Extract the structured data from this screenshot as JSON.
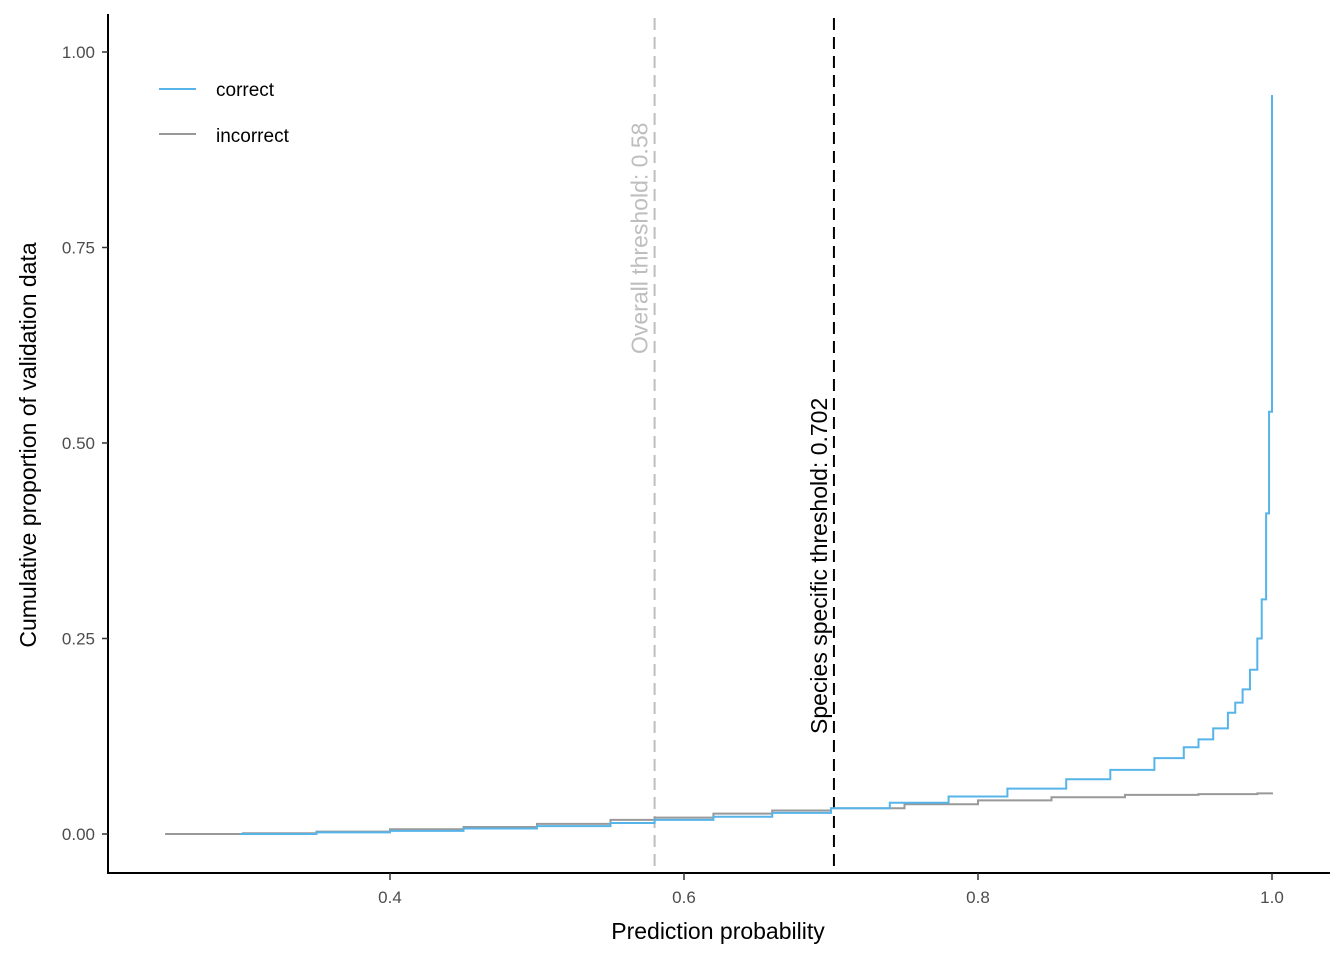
{
  "chart_data": {
    "type": "line",
    "subtype": "step (empirical cumulative)",
    "title": "",
    "xlabel": "Prediction probability",
    "ylabel": "Cumulative proportion of validation data",
    "xlim": [
      0.22,
      1.03
    ],
    "ylim": [
      -0.05,
      1.05
    ],
    "x_ticks": [
      0.4,
      0.6,
      0.8,
      1.0
    ],
    "x_tick_labels": [
      "0.4",
      "0.6",
      "0.8",
      "1.0"
    ],
    "y_ticks": [
      0.0,
      0.25,
      0.5,
      0.75,
      1.0
    ],
    "y_tick_labels": [
      "0.00",
      "0.25",
      "0.50",
      "0.75",
      "1.00"
    ],
    "grid": false,
    "legend": {
      "position": "top-left inside",
      "entries": [
        {
          "label": "correct",
          "color": "#56B4E9"
        },
        {
          "label": "incorrect",
          "color": "#999999"
        }
      ]
    },
    "series": [
      {
        "name": "correct",
        "color": "#56B4E9",
        "x": [
          0.298,
          0.35,
          0.4,
          0.45,
          0.5,
          0.55,
          0.58,
          0.62,
          0.66,
          0.7,
          0.74,
          0.78,
          0.82,
          0.86,
          0.89,
          0.92,
          0.94,
          0.95,
          0.96,
          0.97,
          0.975,
          0.98,
          0.985,
          0.99,
          0.993,
          0.996,
          0.998,
          1.0,
          1.0
        ],
        "values": [
          0.0,
          0.002,
          0.004,
          0.007,
          0.01,
          0.014,
          0.018,
          0.022,
          0.027,
          0.033,
          0.04,
          0.048,
          0.058,
          0.07,
          0.082,
          0.097,
          0.111,
          0.121,
          0.135,
          0.155,
          0.168,
          0.185,
          0.21,
          0.25,
          0.3,
          0.41,
          0.54,
          0.54,
          0.945
        ]
      },
      {
        "name": "incorrect",
        "color": "#999999",
        "x": [
          0.247,
          0.3,
          0.35,
          0.4,
          0.45,
          0.5,
          0.55,
          0.58,
          0.62,
          0.66,
          0.7,
          0.75,
          0.8,
          0.85,
          0.9,
          0.95,
          0.99,
          1.0
        ],
        "values": [
          0.0,
          0.001,
          0.003,
          0.006,
          0.009,
          0.013,
          0.018,
          0.021,
          0.026,
          0.03,
          0.033,
          0.038,
          0.043,
          0.047,
          0.05,
          0.051,
          0.052,
          0.053
        ]
      }
    ],
    "annotations": [
      {
        "type": "vline",
        "x": 0.58,
        "style": "dashed",
        "color": "#BEBEBE",
        "label": "Overall threshold: 0.58"
      },
      {
        "type": "vline",
        "x": 0.702,
        "style": "dashed",
        "color": "#000000",
        "label": "Species specific threshold: 0.702"
      }
    ]
  }
}
